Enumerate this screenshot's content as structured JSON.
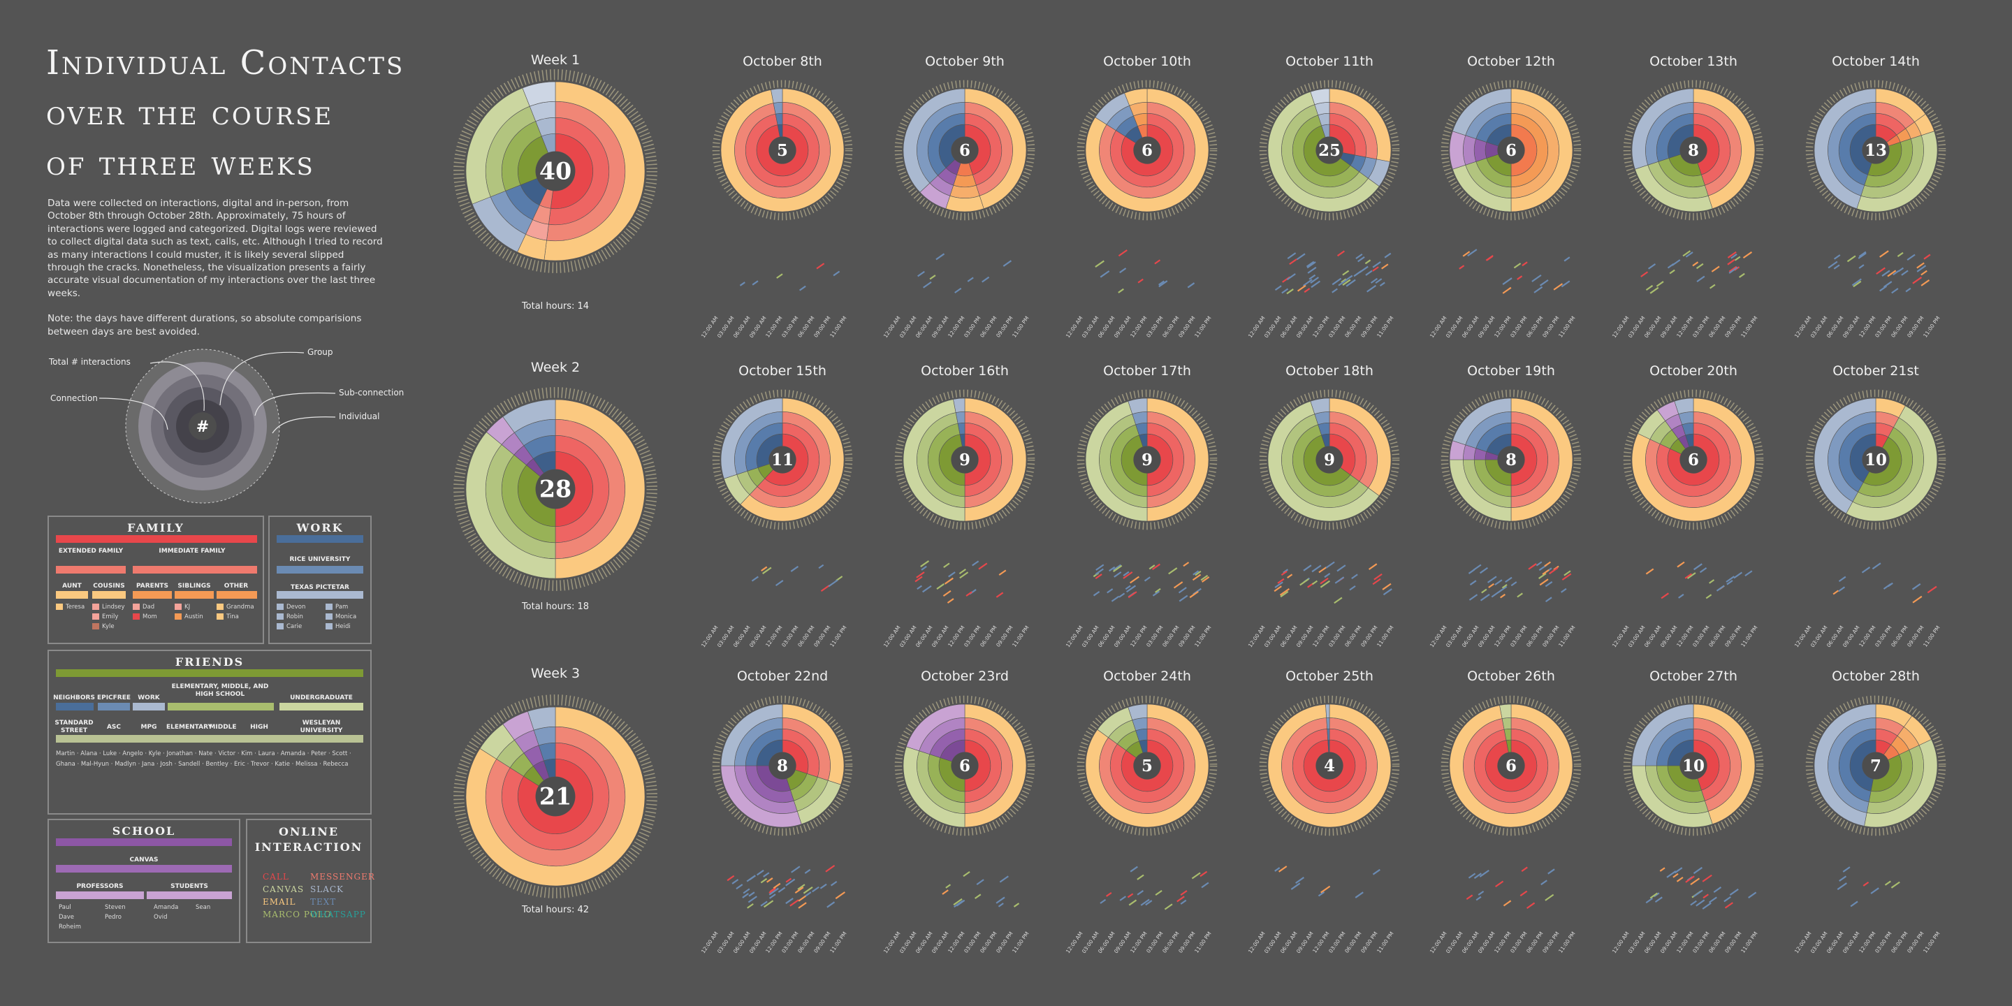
{
  "title": [
    "Individual Contacts",
    "over the course",
    "of three weeks"
  ],
  "description": [
    "Data were collected on interactions, digital and in-person, from October 8th through October 28th. Approximately, 75 hours of interactions were logged and categorized. Digital logs were reviewed to collect digital data such as text, calls, etc. Although I tried to record as many interactions I could muster, it is likely several slipped through the cracks. Nonetheless, the visualization presents a fairly accurate visual documentation of my interactions over the last three weeks.",
    "Note: the days have different durations, so absolute comparisions between days are best avoided."
  ],
  "legend_diagram": {
    "center": "#",
    "labels": {
      "total": "Total # interactions",
      "connection": "Connection",
      "group": "Group",
      "subconnection": "Sub-connection",
      "individual": "Individual"
    }
  },
  "colors": {
    "family": "#e8474b",
    "family_light": "#ef7a6e",
    "family_lighter": "#f4a39a",
    "orange": "#f49a55",
    "peach": "#fbc980",
    "work": "#4a6e9a",
    "work_mid": "#6b8bb3",
    "work_light": "#aab9d0",
    "friends": "#7e9a34",
    "friends_mid": "#a9bd6e",
    "friends_light": "#cbd6a0",
    "school": "#8d57a6",
    "school_light": "#c9a3d3",
    "bg": "#545454",
    "center": "#4d4d4d"
  },
  "legend": {
    "family": {
      "title": "Family",
      "sub": [
        "Extended Family",
        "Immediate Family"
      ],
      "groups": [
        "Aunt",
        "Cousins",
        "Parents",
        "Siblings",
        "Other"
      ],
      "people": [
        "Teresa",
        "Lindsey",
        "Emily",
        "Kyle",
        "Dad",
        "Mom",
        "KJ",
        "Austin",
        "Grandma",
        "Tina"
      ]
    },
    "work": {
      "title": "Work",
      "sub": [
        "Rice University",
        "Texas Pictetar"
      ],
      "people": [
        "Devon",
        "Pam",
        "Robin",
        "Monica",
        "Carie",
        "Heidi"
      ]
    },
    "friends": {
      "title": "Friends",
      "groups": [
        "Neighbors",
        "Epicfree",
        "Work",
        "Elementary, Middle, and High School",
        "Undergraduate"
      ],
      "subgroups": [
        "Standard Street",
        "ASC",
        "MPG",
        "Elementary",
        "Middle",
        "High",
        "Wesleyan University"
      ],
      "people": [
        "Martin",
        "Alana",
        "Luke",
        "Angelo",
        "Kyle",
        "Jonathan",
        "Nate",
        "Victor",
        "Kim",
        "Laura",
        "Amanda",
        "Peter",
        "Scott",
        "Ghana",
        "Mal-Hyun",
        "Madlyn",
        "Jana",
        "Josh",
        "Sandell",
        "Bentley",
        "Eric",
        "Trevor",
        "Katie",
        "Melissa",
        "Rebecca"
      ]
    },
    "school": {
      "title": "School",
      "sub": [
        "Canvas"
      ],
      "groups": [
        "Professors",
        "Students"
      ],
      "people": [
        "Paul",
        "Dave",
        "Roheim",
        "Steven",
        "Pedro",
        "Amanda",
        "Sean",
        "Ovid"
      ]
    },
    "online": {
      "title": "Online Interaction",
      "items": [
        {
          "label": "Call",
          "color": "#e8474b"
        },
        {
          "label": "Messenger",
          "color": "#ef7a6e"
        },
        {
          "label": "Canvas",
          "color": "#cbd6a0"
        },
        {
          "label": "Slack",
          "color": "#aab9d0"
        },
        {
          "label": "Email",
          "color": "#fbc980"
        },
        {
          "label": "Text",
          "color": "#6b8bb3"
        },
        {
          "label": "Marco Polo",
          "color": "#a9bd6e"
        },
        {
          "label": "WhatsApp",
          "color": "#27a09a"
        }
      ]
    }
  },
  "times": [
    "12:00 AM",
    "03:00 AM",
    "06:00 AM",
    "09:00 AM",
    "12:00 PM",
    "03:00 PM",
    "06:00 PM",
    "09:00 PM",
    "11:00 PM"
  ],
  "weeks": [
    {
      "title": "Week 1",
      "total": 40,
      "hours_label": "Total hours: 14",
      "dist": [
        [
          "family",
          0.52
        ],
        [
          "family_light",
          0.05
        ],
        [
          "work",
          0.12
        ],
        [
          "friends",
          0.25
        ],
        [
          "work_light",
          0.06
        ]
      ]
    },
    {
      "title": "Week 2",
      "total": 28,
      "hours_label": "Total hours: 18",
      "dist": [
        [
          "family",
          0.5
        ],
        [
          "friends",
          0.36
        ],
        [
          "school",
          0.04
        ],
        [
          "work",
          0.1
        ]
      ]
    },
    {
      "title": "Week 3",
      "total": 21,
      "hours_label": "Total hours: 42",
      "dist": [
        [
          "family",
          0.84
        ],
        [
          "friends",
          0.06
        ],
        [
          "school",
          0.05
        ],
        [
          "work",
          0.05
        ]
      ]
    }
  ],
  "days": [
    {
      "label": "October 8th",
      "total": 5,
      "dist": [
        [
          "family",
          0.97
        ],
        [
          "work",
          0.03
        ]
      ],
      "msgs": 6
    },
    {
      "label": "October 9th",
      "total": 6,
      "dist": [
        [
          "family",
          0.45
        ],
        [
          "orange",
          0.1
        ],
        [
          "school",
          0.08
        ],
        [
          "work",
          0.37
        ]
      ],
      "msgs": 8
    },
    {
      "label": "October 10th",
      "total": 6,
      "dist": [
        [
          "family",
          0.84
        ],
        [
          "work",
          0.1
        ],
        [
          "orange",
          0.06
        ]
      ],
      "msgs": 10
    },
    {
      "label": "October 11th",
      "total": 25,
      "dist": [
        [
          "family",
          0.28
        ],
        [
          "work",
          0.07
        ],
        [
          "friends",
          0.6
        ],
        [
          "work_light",
          0.05
        ]
      ],
      "msgs": 40
    },
    {
      "label": "October 12th",
      "total": 6,
      "dist": [
        [
          "orange",
          0.5
        ],
        [
          "friends",
          0.2
        ],
        [
          "school",
          0.1
        ],
        [
          "work",
          0.2
        ]
      ],
      "msgs": 16
    },
    {
      "label": "October 13th",
      "total": 8,
      "dist": [
        [
          "family",
          0.45
        ],
        [
          "friends",
          0.25
        ],
        [
          "work",
          0.3
        ]
      ],
      "msgs": 24
    },
    {
      "label": "October 14th",
      "total": 13,
      "dist": [
        [
          "family",
          0.15
        ],
        [
          "orange",
          0.05
        ],
        [
          "friends",
          0.35
        ],
        [
          "work",
          0.45
        ]
      ],
      "msgs": 28
    },
    {
      "label": "October 15th",
      "total": 11,
      "dist": [
        [
          "family",
          0.62
        ],
        [
          "friends",
          0.08
        ],
        [
          "work",
          0.3
        ]
      ],
      "msgs": 9
    },
    {
      "label": "October 16th",
      "total": 9,
      "dist": [
        [
          "family",
          0.5
        ],
        [
          "friends",
          0.47
        ],
        [
          "work",
          0.03
        ]
      ],
      "msgs": 20
    },
    {
      "label": "October 17th",
      "total": 9,
      "dist": [
        [
          "family",
          0.5
        ],
        [
          "friends",
          0.45
        ],
        [
          "work",
          0.05
        ]
      ],
      "msgs": 36
    },
    {
      "label": "October 18th",
      "total": 9,
      "dist": [
        [
          "family",
          0.35
        ],
        [
          "friends",
          0.6
        ],
        [
          "work",
          0.05
        ]
      ],
      "msgs": 30
    },
    {
      "label": "October 19th",
      "total": 8,
      "dist": [
        [
          "family",
          0.5
        ],
        [
          "friends",
          0.25
        ],
        [
          "school",
          0.05
        ],
        [
          "work",
          0.2
        ]
      ],
      "msgs": 32
    },
    {
      "label": "October 20th",
      "total": 6,
      "dist": [
        [
          "family",
          0.82
        ],
        [
          "friends",
          0.08
        ],
        [
          "school",
          0.05
        ],
        [
          "work",
          0.05
        ]
      ],
      "msgs": 16
    },
    {
      "label": "October 21st",
      "total": 10,
      "dist": [
        [
          "family",
          0.08
        ],
        [
          "friends",
          0.5
        ],
        [
          "work",
          0.42
        ]
      ],
      "msgs": 10
    },
    {
      "label": "October 22nd",
      "total": 8,
      "dist": [
        [
          "family",
          0.3
        ],
        [
          "friends",
          0.15
        ],
        [
          "school",
          0.3
        ],
        [
          "work",
          0.25
        ]
      ],
      "msgs": 40
    },
    {
      "label": "October 23rd",
      "total": 6,
      "dist": [
        [
          "family",
          0.5
        ],
        [
          "friends",
          0.3
        ],
        [
          "school",
          0.2
        ]
      ],
      "msgs": 12
    },
    {
      "label": "October 24th",
      "total": 5,
      "dist": [
        [
          "family",
          0.85
        ],
        [
          "friends",
          0.1
        ],
        [
          "work",
          0.05
        ]
      ],
      "msgs": 18
    },
    {
      "label": "October 25th",
      "total": 4,
      "dist": [
        [
          "family",
          0.99
        ],
        [
          "work",
          0.01
        ]
      ],
      "msgs": 8
    },
    {
      "label": "October 26th",
      "total": 6,
      "dist": [
        [
          "family",
          0.97
        ],
        [
          "friends",
          0.03
        ]
      ],
      "msgs": 14
    },
    {
      "label": "October 27th",
      "total": 10,
      "dist": [
        [
          "family",
          0.45
        ],
        [
          "friends",
          0.3
        ],
        [
          "work",
          0.25
        ]
      ],
      "msgs": 26
    },
    {
      "label": "October 28th",
      "total": 7,
      "dist": [
        [
          "family",
          0.1
        ],
        [
          "orange",
          0.08
        ],
        [
          "friends",
          0.35
        ],
        [
          "work",
          0.47
        ]
      ],
      "msgs": 8
    }
  ]
}
